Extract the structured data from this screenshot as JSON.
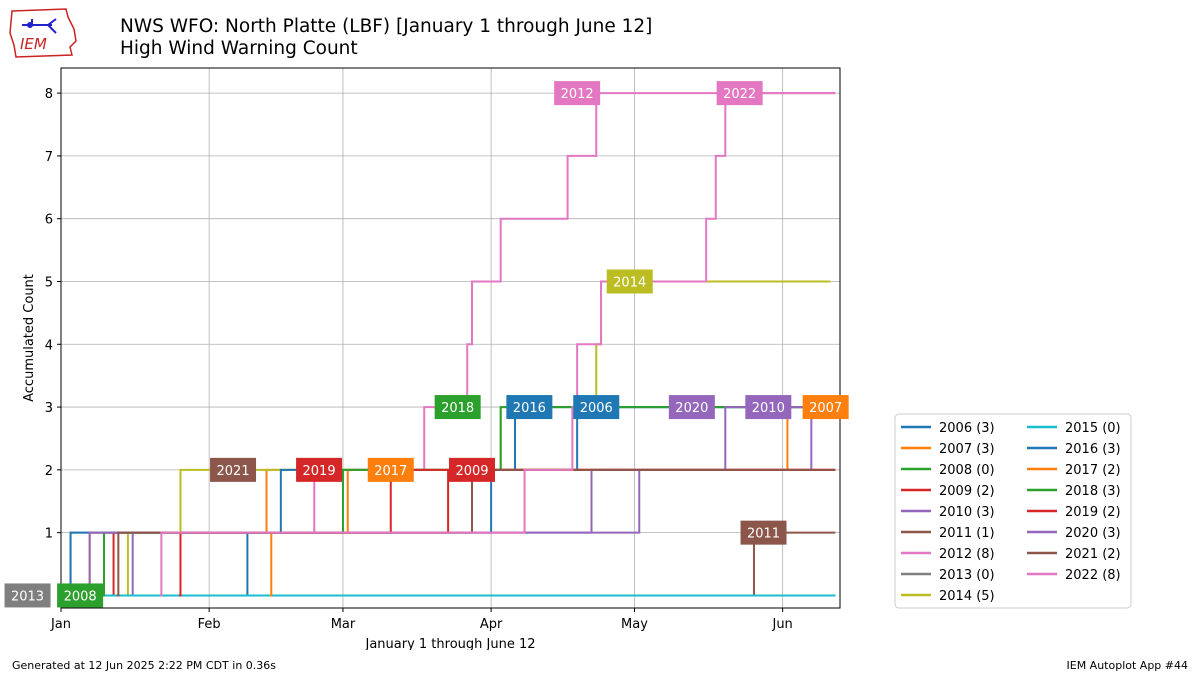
{
  "header": {
    "title_line1": "NWS WFO: North Platte (LBF) [January 1 through June 12]",
    "title_line2": "High Wind Warning Count",
    "logo_text": "IEM"
  },
  "footer": {
    "generated": "Generated at 12 Jun 2025 2:22 PM CDT in 0.36s",
    "app": "IEM Autoplot App #44"
  },
  "chart_data": {
    "type": "line",
    "step": true,
    "xlabel": "January 1 through June 12",
    "ylabel": "Accumulated Count",
    "xlim": [
      1,
      164
    ],
    "ylim": [
      -0.2,
      8.4
    ],
    "grid": true,
    "legend_placement": "outside-right",
    "x_ticks": [
      {
        "day": 1,
        "label": "Jan"
      },
      {
        "day": 32,
        "label": "Feb"
      },
      {
        "day": 60,
        "label": "Mar"
      },
      {
        "day": 91,
        "label": "Apr"
      },
      {
        "day": 121,
        "label": "May"
      },
      {
        "day": 152,
        "label": "Jun"
      }
    ],
    "y_ticks": [
      1,
      2,
      3,
      4,
      5,
      6,
      7,
      8
    ],
    "series": [
      {
        "name": "2006 (3)",
        "color": "#1f77b4",
        "events": [
          40,
          91,
          109
        ],
        "end": 163
      },
      {
        "name": "2007 (3)",
        "color": "#ff7f0e",
        "events": [
          7,
          44,
          153
        ],
        "end": 163
      },
      {
        "name": "2008 (0)",
        "color": "#2ca02c",
        "events": [],
        "end": 163
      },
      {
        "name": "2009 (2)",
        "color": "#d62728",
        "events": [
          12,
          82
        ],
        "end": 163
      },
      {
        "name": "2010 (3)",
        "color": "#9467bd",
        "events": [
          16,
          122,
          158
        ],
        "end": 163
      },
      {
        "name": "2011 (1)",
        "color": "#8c564b",
        "events": [
          146
        ],
        "end": 163
      },
      {
        "name": "2012 (8)",
        "color": "#e377c2",
        "events": [
          3,
          54,
          77,
          86,
          87,
          93,
          107,
          113
        ],
        "end": 163
      },
      {
        "name": "2013 (0)",
        "color": "#7f7f7f",
        "events": [],
        "end": 163
      },
      {
        "name": "2014 (5)",
        "color": "#bcbd22",
        "events": [
          15,
          26,
          93,
          113,
          114
        ],
        "end": 162
      },
      {
        "name": "2015 (0)",
        "color": "#17becf",
        "events": [],
        "end": 163
      },
      {
        "name": "2016 (3)",
        "color": "#1f77b4",
        "events": [
          3,
          47,
          96
        ],
        "end": 163
      },
      {
        "name": "2017 (2)",
        "color": "#ff7f0e",
        "events": [
          45,
          61
        ],
        "end": 163
      },
      {
        "name": "2018 (3)",
        "color": "#2ca02c",
        "events": [
          10,
          60,
          93
        ],
        "end": 163
      },
      {
        "name": "2019 (2)",
        "color": "#d62728",
        "events": [
          26,
          70
        ],
        "end": 163
      },
      {
        "name": "2020 (3)",
        "color": "#9467bd",
        "events": [
          7,
          112,
          140
        ],
        "end": 163
      },
      {
        "name": "2021 (2)",
        "color": "#8c564b",
        "events": [
          13,
          87
        ],
        "end": 163
      },
      {
        "name": "2022 (8)",
        "color": "#e377c2",
        "events": [
          22,
          98,
          108,
          109,
          114,
          138,
          140,
          136
        ],
        "end": 163
      }
    ],
    "annotations": [
      {
        "text": "2012",
        "x": 109,
        "y": 8,
        "color": "#e377c2"
      },
      {
        "text": "2022",
        "x": 143,
        "y": 8,
        "color": "#e377c2"
      },
      {
        "text": "2014",
        "x": 120,
        "y": 5,
        "color": "#bcbd22"
      },
      {
        "text": "2018",
        "x": 84,
        "y": 3,
        "color": "#2ca02c"
      },
      {
        "text": "2016",
        "x": 99,
        "y": 3,
        "color": "#1f77b4"
      },
      {
        "text": "2006",
        "x": 113,
        "y": 3,
        "color": "#1f77b4"
      },
      {
        "text": "2020",
        "x": 133,
        "y": 3,
        "color": "#9467bd"
      },
      {
        "text": "2010",
        "x": 149,
        "y": 3,
        "color": "#9467bd"
      },
      {
        "text": "2007",
        "x": 161,
        "y": 3,
        "color": "#ff7f0e"
      },
      {
        "text": "2021",
        "x": 37,
        "y": 2,
        "color": "#8c564b"
      },
      {
        "text": "2019",
        "x": 55,
        "y": 2,
        "color": "#d62728"
      },
      {
        "text": "2017",
        "x": 70,
        "y": 2,
        "color": "#ff7f0e"
      },
      {
        "text": "2009",
        "x": 87,
        "y": 2,
        "color": "#d62728"
      },
      {
        "text": "2011",
        "x": 148,
        "y": 1,
        "color": "#8c564b"
      },
      {
        "text": "2013",
        "x": -6,
        "y": 0,
        "color": "#7f7f7f"
      },
      {
        "text": "2008",
        "x": 5,
        "y": 0,
        "color": "#2ca02c"
      }
    ]
  }
}
